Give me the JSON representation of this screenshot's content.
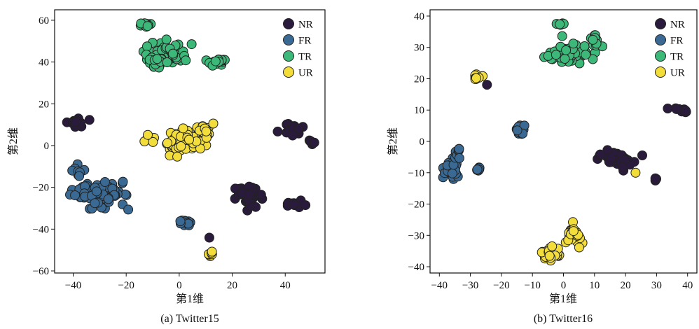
{
  "chart_data": [
    {
      "type": "scatter",
      "caption": "(a) Twitter15",
      "xlabel": "第1维",
      "ylabel": "第2维",
      "xlim": [
        -47,
        55
      ],
      "ylim": [
        -61,
        65
      ],
      "xticks": [
        "−40",
        "−20",
        "0",
        "20",
        "40"
      ],
      "xtick_values": [
        -40,
        -20,
        0,
        20,
        40
      ],
      "yticks": [
        "60",
        "40",
        "20",
        "0",
        "−20",
        "−40",
        "−60"
      ],
      "ytick_values": [
        60,
        40,
        20,
        0,
        -20,
        -40,
        -60
      ],
      "legend_position": "top-right",
      "series": [
        {
          "name": "NR",
          "color": "#2a1b3d",
          "clusters": [
            {
              "cx": -40,
              "cy": 11,
              "sx": 2.5,
              "sy": 1.2,
              "n": 22
            },
            {
              "cx": 42,
              "cy": 8,
              "sx": 3,
              "sy": 2,
              "n": 22
            },
            {
              "cx": 50,
              "cy": 1.5,
              "sx": 1.2,
              "sy": 1,
              "n": 8
            },
            {
              "cx": 26,
              "cy": -24,
              "sx": 3.5,
              "sy": 3,
              "n": 40
            },
            {
              "cx": 44,
              "cy": -28,
              "sx": 3,
              "sy": 1,
              "n": 18
            },
            {
              "cx": 11,
              "cy": -44,
              "sx": 0.3,
              "sy": 0.3,
              "n": 1
            }
          ]
        },
        {
          "name": "FR",
          "color": "#3a6a94",
          "clusters": [
            {
              "cx": -31,
              "cy": -23,
              "sx": 6,
              "sy": 4,
              "n": 80
            },
            {
              "cx": -38,
              "cy": -12,
              "sx": 2,
              "sy": 2.5,
              "n": 10
            },
            {
              "cx": 2,
              "cy": -37,
              "sx": 2,
              "sy": 1,
              "n": 12
            }
          ]
        },
        {
          "name": "TR",
          "color": "#3cb878",
          "clusters": [
            {
              "cx": -13,
              "cy": 58,
              "sx": 1.5,
              "sy": 0.6,
              "n": 10
            },
            {
              "cx": -5,
              "cy": 43,
              "sx": 5,
              "sy": 3.5,
              "n": 90
            },
            {
              "cx": 14,
              "cy": 40,
              "sx": 2.5,
              "sy": 1.8,
              "n": 20
            }
          ]
        },
        {
          "name": "UR",
          "color": "#f2dd3b",
          "clusters": [
            {
              "cx": 3,
              "cy": 2,
              "sx": 5,
              "sy": 3.5,
              "n": 80
            },
            {
              "cx": 10,
              "cy": 7,
              "sx": 1.5,
              "sy": 2.5,
              "n": 15
            },
            {
              "cx": -11,
              "cy": 3,
              "sx": 2.5,
              "sy": 1,
              "n": 6
            },
            {
              "cx": 12,
              "cy": -52,
              "sx": 1,
              "sy": 1.5,
              "n": 6
            }
          ]
        }
      ]
    },
    {
      "type": "scatter",
      "caption": "(b) Twitter16",
      "xlabel": "第1维",
      "ylabel": "第2维",
      "xlim": [
        -43,
        43
      ],
      "ylim": [
        -42,
        42
      ],
      "xticks": [
        "−40",
        "−30",
        "−20",
        "−10",
        "0",
        "10",
        "20",
        "30",
        "40"
      ],
      "xtick_values": [
        -40,
        -30,
        -20,
        -10,
        0,
        10,
        20,
        30,
        40
      ],
      "yticks": [
        "40",
        "30",
        "20",
        "10",
        "0",
        "−10",
        "−20",
        "−30",
        "−40"
      ],
      "ytick_values": [
        40,
        30,
        20,
        10,
        0,
        -10,
        -20,
        -30,
        -40
      ],
      "legend_position": "top-right",
      "series": [
        {
          "name": "NR",
          "color": "#2a1b3d",
          "clusters": [
            {
              "cx": -25,
              "cy": 18,
              "sx": 0.3,
              "sy": 0.3,
              "n": 1
            },
            {
              "cx": 37,
              "cy": 10,
              "sx": 2,
              "sy": 0.6,
              "n": 10
            },
            {
              "cx": 17,
              "cy": -6,
              "sx": 4,
              "sy": 1.5,
              "n": 35
            },
            {
              "cx": 30,
              "cy": -12.5,
              "sx": 0.5,
              "sy": 0.5,
              "n": 3
            }
          ]
        },
        {
          "name": "FR",
          "color": "#3a6a94",
          "clusters": [
            {
              "cx": -36,
              "cy": -9,
              "sx": 1.5,
              "sy": 2,
              "n": 30
            },
            {
              "cx": -34,
              "cy": -3,
              "sx": 1,
              "sy": 1.5,
              "n": 8
            },
            {
              "cx": -27,
              "cy": -9,
              "sx": 1,
              "sy": 0.5,
              "n": 8
            },
            {
              "cx": -14,
              "cy": 4,
              "sx": 1,
              "sy": 1.5,
              "n": 12
            }
          ]
        },
        {
          "name": "TR",
          "color": "#3cb878",
          "clusters": [
            {
              "cx": 1,
              "cy": 28,
              "sx": 4,
              "sy": 2,
              "n": 60
            },
            {
              "cx": 10,
              "cy": 33,
              "sx": 1.3,
              "sy": 1.5,
              "n": 12
            },
            {
              "cx": -1,
              "cy": 37.5,
              "sx": 1,
              "sy": 0.3,
              "n": 6
            }
          ]
        },
        {
          "name": "UR",
          "color": "#f2dd3b",
          "clusters": [
            {
              "cx": -28,
              "cy": 20.5,
              "sx": 1,
              "sy": 0.6,
              "n": 8
            },
            {
              "cx": 23,
              "cy": -10,
              "sx": 0.3,
              "sy": 0.3,
              "n": 1
            },
            {
              "cx": -4,
              "cy": -36,
              "sx": 2,
              "sy": 1.5,
              "n": 28
            },
            {
              "cx": 3,
              "cy": -30,
              "sx": 2,
              "sy": 2,
              "n": 25
            }
          ]
        }
      ]
    }
  ]
}
